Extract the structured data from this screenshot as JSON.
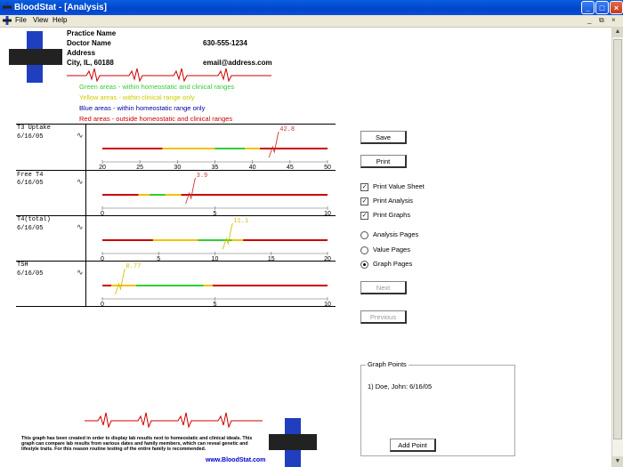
{
  "window": {
    "title": "BloodStat - [Analysis]",
    "controls": [
      "_",
      "□",
      "×"
    ]
  },
  "menu": [
    "File",
    "View",
    "Help"
  ],
  "mdi_controls": [
    "_",
    "⧉",
    "×"
  ],
  "header": {
    "practice_name": "Practice Name",
    "doctor_name": "Doctor Name",
    "address": "Address",
    "city": "City, IL, 60188",
    "phone": "630-555-1234",
    "email": "email@address.com"
  },
  "legend": {
    "green": {
      "text": "Green areas - within homeostatic and clinical ranges",
      "color": "#33cc33"
    },
    "yellow": {
      "text": "Yellow areas - within clinical range only",
      "color": "#cccc00"
    },
    "blue": {
      "text": "Blue areas - within homeostatic range only",
      "color": "#000099"
    },
    "red": {
      "text": "Red areas - outside homeostatic and clinical ranges",
      "color": "#cc0000"
    }
  },
  "panels": [
    {
      "title": "T3 Uptake",
      "date": "6/16/05",
      "value": 42.8,
      "value_label": "42.8",
      "value_color": "#cc3333",
      "min": 20,
      "max": 50,
      "ticks": [
        "20",
        "25",
        "30",
        "35",
        "40",
        "45",
        "50"
      ],
      "segments": [
        [
          20,
          28,
          "#cc0000"
        ],
        [
          28,
          35,
          "#f2c200"
        ],
        [
          35,
          39,
          "#33cc33"
        ],
        [
          39,
          41,
          "#f2c200"
        ],
        [
          41,
          50,
          "#cc0000"
        ]
      ]
    },
    {
      "title": "Free T4",
      "date": "6/16/05",
      "value": 3.9,
      "value_label": "3.9",
      "value_color": "#cc3333",
      "min": 0,
      "max": 10,
      "ticks": [
        "0",
        "5",
        "10"
      ],
      "segments": [
        [
          0,
          1.6,
          "#cc0000"
        ],
        [
          1.6,
          2.1,
          "#f2c200"
        ],
        [
          2.1,
          2.8,
          "#33cc33"
        ],
        [
          2.8,
          3.5,
          "#f2c200"
        ],
        [
          3.5,
          10,
          "#cc0000"
        ]
      ]
    },
    {
      "title": "T4(total)",
      "date": "6/16/05",
      "value": 11.1,
      "value_label": "11.1",
      "value_color": "#d8c000",
      "min": 0,
      "max": 20,
      "ticks": [
        "0",
        "5",
        "10",
        "15",
        "20"
      ],
      "segments": [
        [
          0,
          4.5,
          "#cc0000"
        ],
        [
          4.5,
          8.5,
          "#f2c200"
        ],
        [
          8.5,
          11.5,
          "#33cc33"
        ],
        [
          11.5,
          12.5,
          "#f2c200"
        ],
        [
          12.5,
          20,
          "#cc0000"
        ]
      ]
    },
    {
      "title": "TSH",
      "date": "6/16/05",
      "value": 0.77,
      "value_label": "0.77",
      "value_color": "#d8c000",
      "min": 0,
      "max": 10,
      "ticks": [
        "0",
        "5",
        "10"
      ],
      "segments": [
        [
          0,
          0.4,
          "#cc0000"
        ],
        [
          0.4,
          1.5,
          "#f2c200"
        ],
        [
          1.5,
          4.5,
          "#33cc33"
        ],
        [
          4.5,
          4.9,
          "#f2c200"
        ],
        [
          4.9,
          10,
          "#cc0000"
        ]
      ]
    }
  ],
  "buttons": {
    "save": "Save",
    "print": "Print",
    "next": "Next",
    "previous": "Previous",
    "add_point": "Add Point"
  },
  "options": {
    "print_value_sheet": {
      "label": "Print Value Sheet",
      "checked": true
    },
    "print_analysis": {
      "label": "Print Analysis",
      "checked": true
    },
    "print_graphs": {
      "label": "Print Graphs",
      "checked": true
    },
    "analysis_pages": {
      "label": "Analysis Pages",
      "selected": false
    },
    "value_pages": {
      "label": "Value Pages",
      "selected": false
    },
    "graph_pages": {
      "label": "Graph Pages",
      "selected": true
    }
  },
  "graph_points": {
    "legend": "Graph Points",
    "items": [
      "1) Doe, John: 6/16/05"
    ]
  },
  "footer": {
    "text": "This graph has been created in order to display lab results next to homeostatic and clinical ideals. This graph can compare lab results from various dates and family members, which can reveal genetic and lifestyle traits. For this reason routine testing of the entire family is recommended.",
    "url": "www.BloodStat.com"
  },
  "colors": {
    "logo_blue": "#1f3fbf",
    "logo_dark": "#222222",
    "ekg_red": "#cc0000"
  }
}
